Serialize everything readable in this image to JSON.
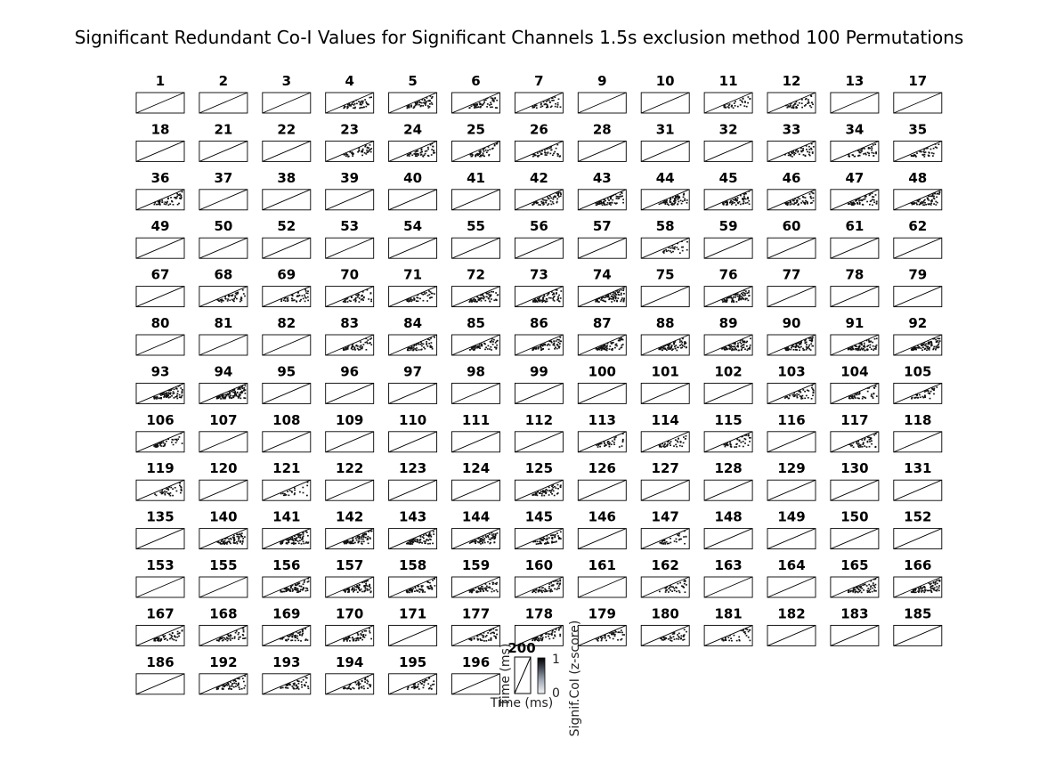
{
  "chart_data": {
    "type": "heatmap",
    "title": "Significant Redundant Co-I Values for Significant Channels 1.5s exclusion method 100 Permutations",
    "subplot_count": 163,
    "channels": [
      "1",
      "2",
      "3",
      "4",
      "5",
      "6",
      "7",
      "9",
      "10",
      "11",
      "12",
      "13",
      "17",
      "18",
      "21",
      "22",
      "23",
      "24",
      "25",
      "26",
      "28",
      "31",
      "32",
      "33",
      "34",
      "35",
      "36",
      "37",
      "38",
      "39",
      "40",
      "41",
      "42",
      "43",
      "44",
      "45",
      "46",
      "47",
      "48",
      "49",
      "50",
      "52",
      "53",
      "54",
      "55",
      "56",
      "57",
      "58",
      "59",
      "60",
      "61",
      "62",
      "67",
      "68",
      "69",
      "70",
      "71",
      "72",
      "73",
      "74",
      "75",
      "76",
      "77",
      "78",
      "79",
      "80",
      "81",
      "82",
      "83",
      "84",
      "85",
      "86",
      "87",
      "88",
      "89",
      "90",
      "91",
      "92",
      "93",
      "94",
      "95",
      "96",
      "97",
      "98",
      "99",
      "100",
      "101",
      "102",
      "103",
      "104",
      "105",
      "106",
      "107",
      "108",
      "109",
      "110",
      "111",
      "112",
      "113",
      "114",
      "115",
      "116",
      "117",
      "118",
      "119",
      "120",
      "121",
      "122",
      "123",
      "124",
      "125",
      "126",
      "127",
      "128",
      "129",
      "130",
      "131",
      "135",
      "140",
      "141",
      "142",
      "143",
      "144",
      "145",
      "146",
      "147",
      "148",
      "149",
      "150",
      "152",
      "153",
      "155",
      "156",
      "157",
      "158",
      "159",
      "160",
      "161",
      "162",
      "163",
      "164",
      "165",
      "166",
      "167",
      "168",
      "169",
      "170",
      "171",
      "177",
      "178",
      "179",
      "180",
      "181",
      "182",
      "183",
      "185",
      "186",
      "192",
      "193",
      "194",
      "195",
      "196"
    ],
    "significant_density": [
      0,
      0,
      0,
      0.35,
      0.4,
      0.35,
      0.3,
      0,
      0,
      0.25,
      0.3,
      0,
      0,
      0,
      0,
      0,
      0.3,
      0.35,
      0.35,
      0.3,
      0,
      0,
      0,
      0.3,
      0.3,
      0.3,
      0.35,
      0,
      0,
      0,
      0,
      0,
      0.4,
      0.45,
      0.45,
      0.45,
      0.45,
      0.4,
      0.45,
      0,
      0,
      0,
      0,
      0,
      0,
      0,
      0,
      0.2,
      0,
      0,
      0,
      0,
      0,
      0.3,
      0.3,
      0.3,
      0.3,
      0.45,
      0.5,
      0.6,
      0,
      0.5,
      0,
      0,
      0,
      0,
      0,
      0,
      0.35,
      0.4,
      0.4,
      0.45,
      0.5,
      0.55,
      0.55,
      0.6,
      0.55,
      0.6,
      0.6,
      0.7,
      0,
      0,
      0,
      0,
      0,
      0,
      0,
      0,
      0.3,
      0.3,
      0.25,
      0.3,
      0,
      0,
      0,
      0,
      0,
      0,
      0.25,
      0.3,
      0.3,
      0,
      0.3,
      0,
      0.25,
      0,
      0.15,
      0,
      0,
      0,
      0.4,
      0,
      0,
      0,
      0,
      0,
      0,
      0,
      0.5,
      0.55,
      0.55,
      0.5,
      0.45,
      0.4,
      0,
      0.25,
      0,
      0,
      0,
      0,
      0,
      0,
      0.5,
      0.5,
      0.45,
      0.4,
      0.4,
      0,
      0.25,
      0,
      0,
      0.45,
      0.55,
      0.35,
      0.35,
      0.35,
      0.35,
      0,
      0.35,
      0.35,
      0.3,
      0.3,
      0.25,
      0,
      0,
      0,
      0,
      0.4,
      0.35,
      0.35,
      0.3,
      0
    ],
    "subplot_grid": {
      "columns": 13,
      "rows": 13
    },
    "xlabel": "Time (ms)",
    "ylabel": "Time (ms)",
    "example_panel_label": "200",
    "colorbar": {
      "label": "Signif.CoI (z-score)",
      "ticks": [
        "1",
        "0"
      ],
      "ylim": [
        0,
        1
      ],
      "colors": [
        "#f4f6f8",
        "#9aa3b0",
        "#3a3f4a",
        "#000000"
      ]
    },
    "diagonal": true,
    "grid": false
  }
}
